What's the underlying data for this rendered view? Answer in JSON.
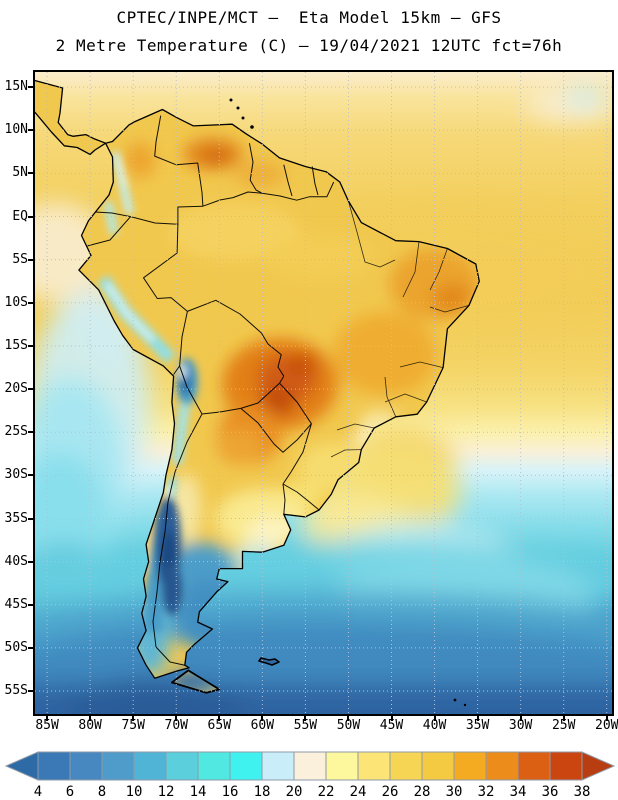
{
  "title": {
    "line1": "CPTEC/INPE/MCT –  Eta Model 15km – GFS",
    "line2": "2 Metre Temperature (C) – 19/04/2021 12UTC fct=76h"
  },
  "map": {
    "lat_labels": [
      "15N",
      "10N",
      "5N",
      "EQ",
      "5S",
      "10S",
      "15S",
      "20S",
      "25S",
      "30S",
      "35S",
      "40S",
      "45S",
      "50S",
      "55S"
    ],
    "lon_labels": [
      "85W",
      "80W",
      "75W",
      "70W",
      "65W",
      "60W",
      "55W",
      "50W",
      "45W",
      "40W",
      "35W",
      "30W",
      "25W",
      "20W"
    ],
    "grid_color": "#b9bfce"
  },
  "colorbar": {
    "tick_labels": [
      "4",
      "6",
      "8",
      "10",
      "12",
      "14",
      "16",
      "18",
      "20",
      "22",
      "24",
      "26",
      "28",
      "30",
      "32",
      "34",
      "36",
      "38"
    ],
    "segment_colors": [
      "#3a79b6",
      "#4688bf",
      "#4f9cca",
      "#4fb4d6",
      "#5bcfdc",
      "#50e8e0",
      "#3ff2f0",
      "#c9eef9",
      "#faf0dc",
      "#fdf79e",
      "#fce476",
      "#f7d554",
      "#f4ca43",
      "#f4ab22",
      "#ec8c1b",
      "#dc6013",
      "#cb4511"
    ],
    "left_arrow_color": "#2d6aa6",
    "right_arrow_color": "#b83d10",
    "border_color": "#8f9aa8"
  }
}
